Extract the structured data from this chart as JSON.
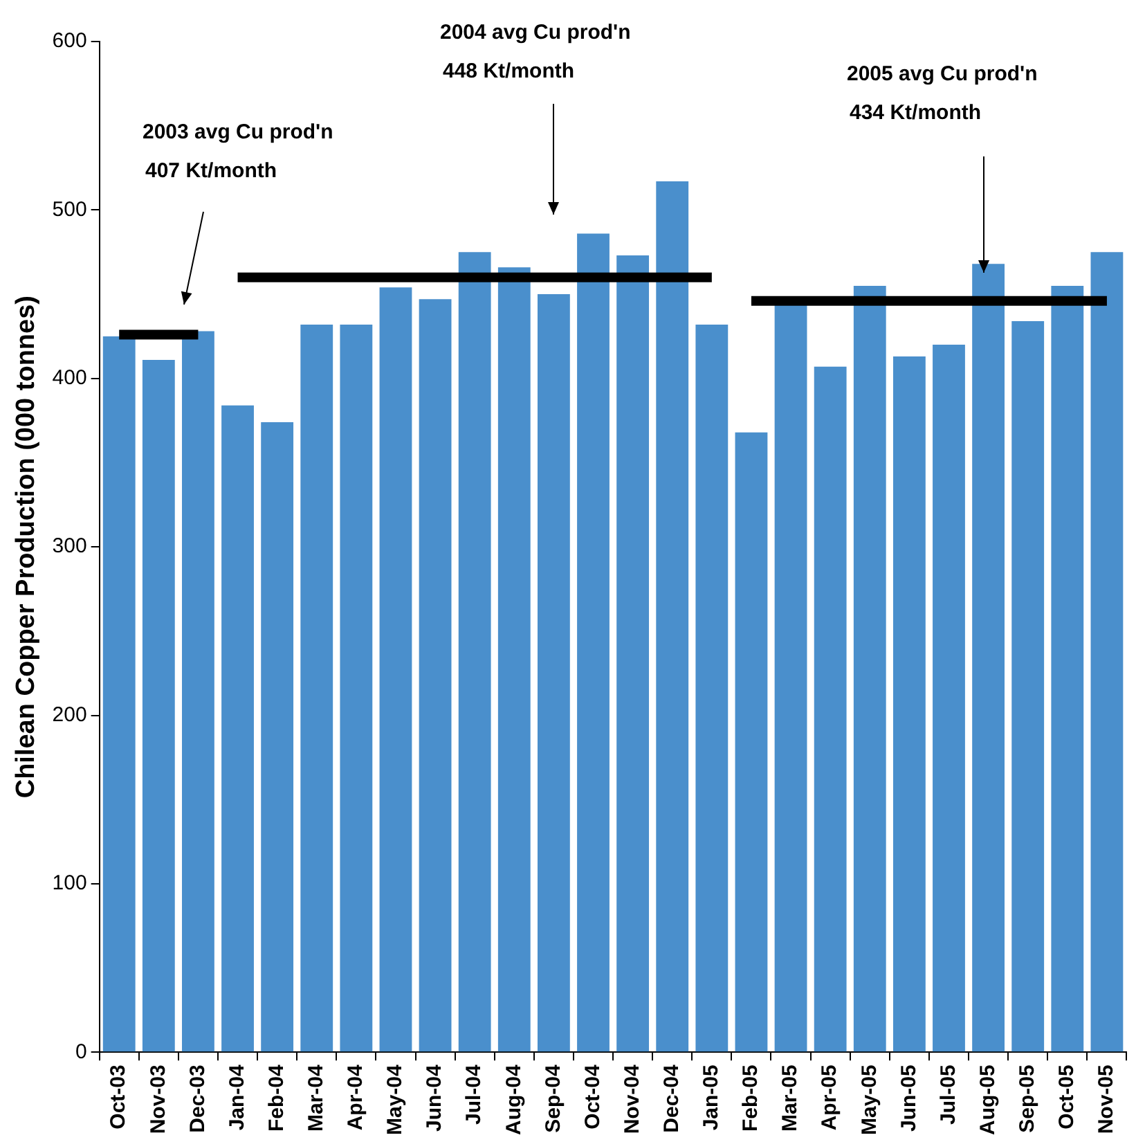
{
  "chart_data": {
    "type": "bar",
    "ylabel": "Chilean Copper Production (000 tonnes)",
    "categories": [
      "Oct-03",
      "Nov-03",
      "Dec-03",
      "Jan-04",
      "Feb-04",
      "Mar-04",
      "Apr-04",
      "May-04",
      "Jun-04",
      "Jul-04",
      "Aug-04",
      "Sep-04",
      "Oct-04",
      "Nov-04",
      "Dec-04",
      "Jan-05",
      "Feb-05",
      "Mar-05",
      "Apr-05",
      "May-05",
      "Jun-05",
      "Jul-05",
      "Aug-05",
      "Sep-05",
      "Oct-05",
      "Nov-05"
    ],
    "series": [
      {
        "color": "#4a8fcc",
        "values": [
          425,
          411,
          428,
          384,
          374,
          432,
          432,
          454,
          447,
          475,
          466,
          450,
          486,
          473,
          517,
          432,
          368,
          445,
          407,
          455,
          413,
          420,
          468,
          434,
          455,
          475
        ]
      },
      {
        "type": "line",
        "color": "#000000",
        "values": [
          426,
          426,
          426,
          null,
          null,
          null,
          null,
          null,
          null,
          null,
          null,
          null,
          null,
          null,
          null,
          null,
          null,
          null,
          null,
          null,
          null,
          null,
          null,
          null,
          null,
          null
        ]
      },
      {
        "type": "line",
        "color": "#000000",
        "values": [
          null,
          null,
          null,
          460,
          460,
          460,
          460,
          460,
          460,
          460,
          460,
          460,
          460,
          460,
          460,
          460,
          null,
          null,
          null,
          null,
          null,
          null,
          null,
          null,
          null,
          null
        ]
      },
      {
        "type": "line",
        "color": "#000000",
        "values": [
          null,
          null,
          null,
          null,
          null,
          null,
          null,
          null,
          null,
          null,
          null,
          null,
          null,
          null,
          null,
          null,
          446,
          446,
          446,
          446,
          446,
          446,
          446,
          446,
          446,
          446
        ]
      }
    ],
    "ylim": [
      0,
      600
    ],
    "yticks": [
      0,
      100,
      200,
      300,
      400,
      500,
      600
    ],
    "grid": false,
    "legend": false,
    "marker": "none",
    "line_style": "solid",
    "annotations": [
      "2003 avg Cu prod'n\n407 Kt/month",
      "2004 avg Cu prod'n\n448 Kt/month",
      "2005 avg Cu prod'n\n434 Kt/month"
    ]
  }
}
